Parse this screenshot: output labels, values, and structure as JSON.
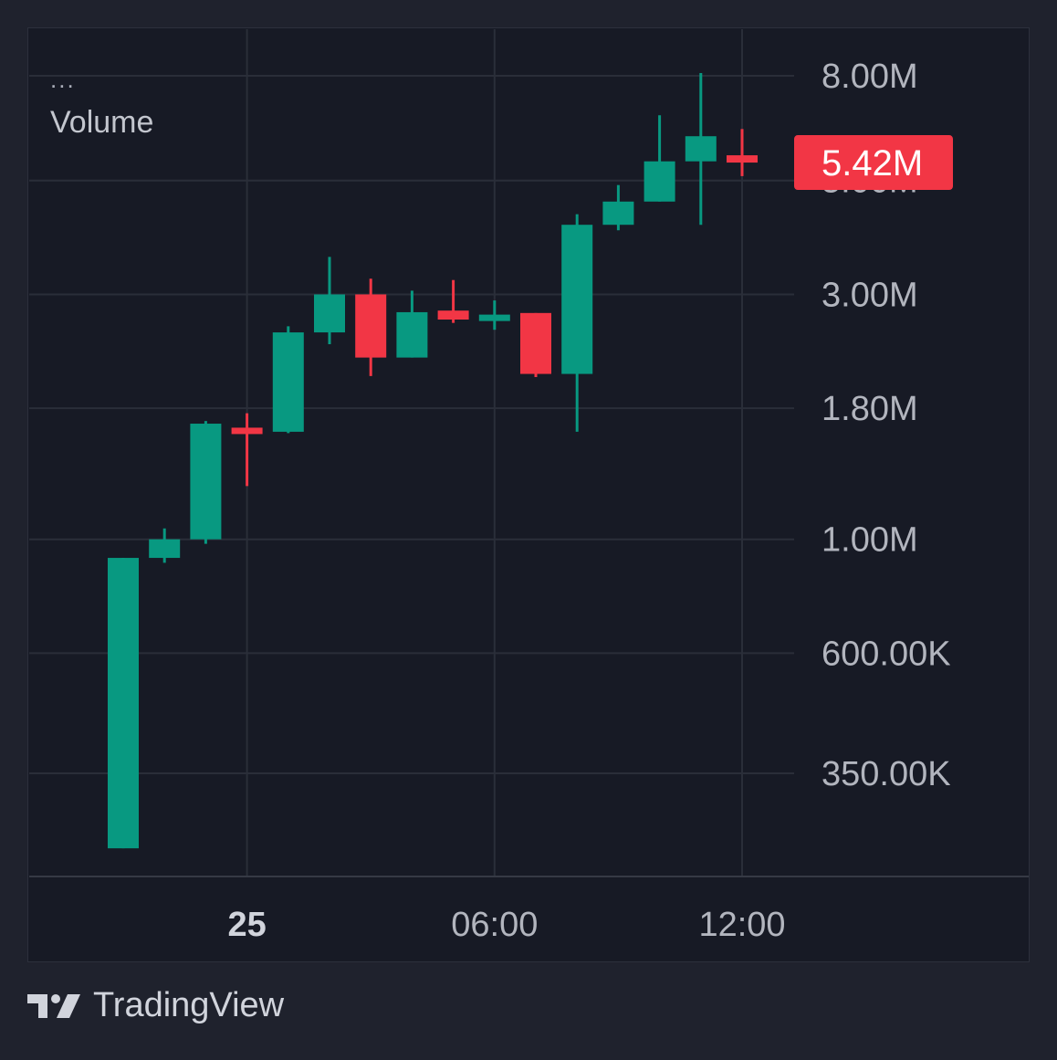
{
  "legend": {
    "dots": "...",
    "title": "Volume"
  },
  "brand": {
    "name": "TradingView"
  },
  "colors": {
    "up": "#089981",
    "down": "#f23645",
    "background": "#171a25",
    "grid": "#2a2e39",
    "text": "#b2b5be"
  },
  "chart_data": {
    "type": "candlestick",
    "title": "Volume",
    "y_scale": "log",
    "ylim": [
      220000,
      9500000
    ],
    "y_ticks": [
      {
        "value": 8000000,
        "label": "8.00M"
      },
      {
        "value": 5000000,
        "label": "5.00M"
      },
      {
        "value": 3000000,
        "label": "3.00M"
      },
      {
        "value": 1800000,
        "label": "1.80M"
      },
      {
        "value": 1000000,
        "label": "1.00M"
      },
      {
        "value": 600000,
        "label": "600.00K"
      },
      {
        "value": 350000,
        "label": "350.00K"
      }
    ],
    "x_ticks": [
      {
        "index": 3,
        "label": "25",
        "bold": true
      },
      {
        "index": 9,
        "label": "06:00",
        "bold": false
      },
      {
        "index": 15,
        "label": "12:00",
        "bold": false
      }
    ],
    "last_value": {
      "value": 5420000,
      "label": "5.42M"
    },
    "candles": [
      {
        "open": 250000,
        "high": 920000,
        "low": 250000,
        "close": 920000
      },
      {
        "open": 920000,
        "high": 1050000,
        "low": 900000,
        "close": 1000000
      },
      {
        "open": 1000000,
        "high": 1700000,
        "low": 980000,
        "close": 1680000
      },
      {
        "open": 1650000,
        "high": 1760000,
        "low": 1270000,
        "close": 1610000
      },
      {
        "open": 1620000,
        "high": 2600000,
        "low": 1610000,
        "close": 2530000
      },
      {
        "open": 2530000,
        "high": 3550000,
        "low": 2400000,
        "close": 3000000
      },
      {
        "open": 3000000,
        "high": 3220000,
        "low": 2080000,
        "close": 2260000
      },
      {
        "open": 2260000,
        "high": 3050000,
        "low": 2260000,
        "close": 2770000
      },
      {
        "open": 2790000,
        "high": 3200000,
        "low": 2640000,
        "close": 2680000
      },
      {
        "open": 2680000,
        "high": 2920000,
        "low": 2560000,
        "close": 2740000
      },
      {
        "open": 2760000,
        "high": 2760000,
        "low": 2070000,
        "close": 2100000
      },
      {
        "open": 2100000,
        "high": 4300000,
        "low": 1620000,
        "close": 4100000
      },
      {
        "open": 4100000,
        "high": 4900000,
        "low": 4000000,
        "close": 4550000
      },
      {
        "open": 4550000,
        "high": 6700000,
        "low": 4550000,
        "close": 5450000
      },
      {
        "open": 5450000,
        "high": 8100000,
        "low": 4100000,
        "close": 6100000
      },
      {
        "open": 5600000,
        "high": 6300000,
        "low": 5100000,
        "close": 5420000
      }
    ]
  }
}
